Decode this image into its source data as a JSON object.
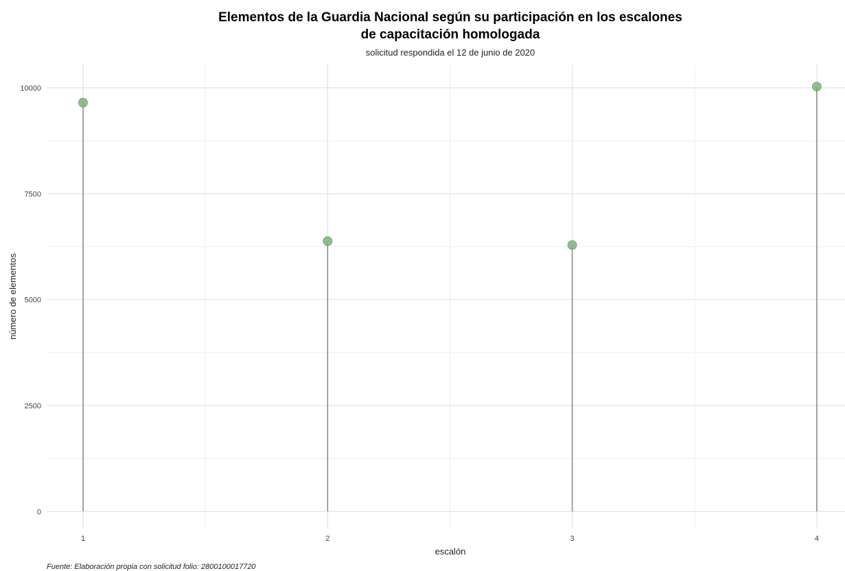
{
  "chart_data": {
    "type": "lollipop",
    "title_lines": [
      "Elementos de la Guardia Nacional según su participación en los escalones",
      "de capacitación homologada"
    ],
    "subtitle": "solicitud respondida el 12 de junio de 2020",
    "xlabel": "escalón",
    "ylabel": "número de elementos",
    "caption": "Fuente: Elaboración propia con solicitud folio: 2800100017720",
    "categories": [
      "1",
      "2",
      "3",
      "4"
    ],
    "values": [
      9650,
      6380,
      6290,
      10030
    ],
    "ylim": [
      -400,
      10550
    ],
    "yticks": [
      0,
      2500,
      5000,
      7500,
      10000
    ],
    "grid": true,
    "legend": "none",
    "colors": {
      "point": "#7fb27f",
      "stem": "#8c8c8c",
      "grid_major": "#e0e0e0",
      "grid_minor": "#eeeeee"
    }
  }
}
